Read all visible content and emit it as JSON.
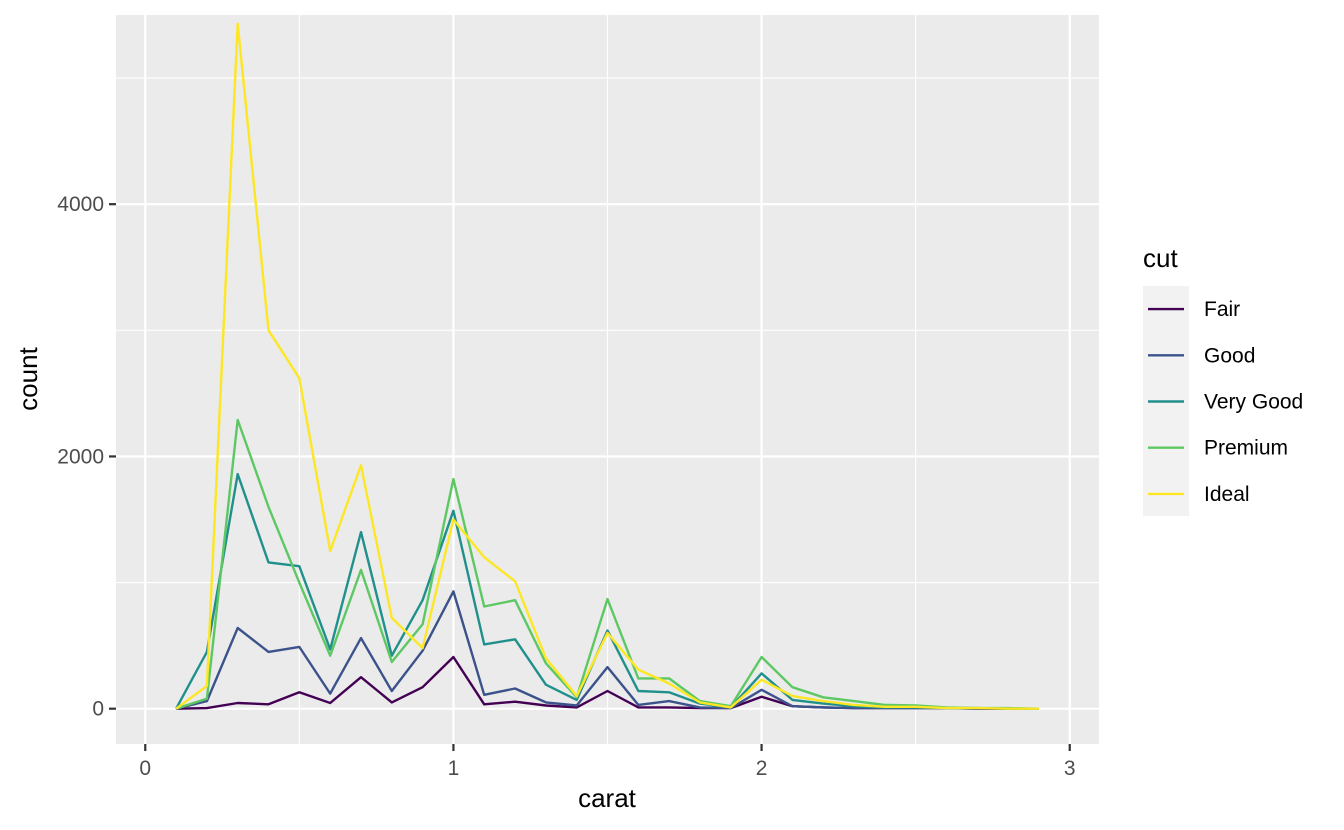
{
  "chart_data": {
    "type": "line",
    "xlabel": "carat",
    "ylabel": "count",
    "xlim": [
      -0.095,
      3.095
    ],
    "ylim": [
      -280,
      5500
    ],
    "x_ticks": [
      0,
      1,
      2,
      3
    ],
    "x_tick_labels": [
      "0",
      "1",
      "2",
      "3"
    ],
    "y_ticks": [
      0,
      2000,
      4000
    ],
    "y_tick_labels": [
      "0",
      "2000",
      "4000"
    ],
    "grid": true,
    "legend_title": "cut",
    "legend_position": "right",
    "x": [
      0.1,
      0.2,
      0.3,
      0.4,
      0.5,
      0.6,
      0.7,
      0.8,
      0.9,
      1.0,
      1.1,
      1.2,
      1.3,
      1.4,
      1.5,
      1.6,
      1.7,
      1.8,
      1.9,
      2.0,
      2.1,
      2.2,
      2.3,
      2.4,
      2.5,
      2.6,
      2.7,
      2.8,
      2.9
    ],
    "series": [
      {
        "name": "Fair",
        "color": "#440154",
        "values": [
          0,
          5,
          45,
          35,
          130,
          45,
          250,
          50,
          170,
          410,
          35,
          55,
          25,
          10,
          140,
          10,
          10,
          5,
          5,
          95,
          20,
          10,
          5,
          5,
          5,
          5,
          0,
          0,
          0
        ]
      },
      {
        "name": "Good",
        "color": "#3B528B",
        "values": [
          0,
          60,
          640,
          450,
          490,
          120,
          560,
          140,
          460,
          930,
          110,
          160,
          50,
          25,
          330,
          30,
          60,
          10,
          5,
          150,
          20,
          10,
          5,
          5,
          5,
          5,
          0,
          0,
          0
        ]
      },
      {
        "name": "Very Good",
        "color": "#21908C",
        "values": [
          0,
          450,
          1860,
          1160,
          1130,
          470,
          1400,
          420,
          860,
          1570,
          510,
          550,
          190,
          70,
          620,
          140,
          130,
          40,
          10,
          280,
          70,
          40,
          20,
          10,
          10,
          5,
          5,
          0,
          0
        ]
      },
      {
        "name": "Premium",
        "color": "#5DC863",
        "values": [
          0,
          80,
          2290,
          1600,
          1000,
          420,
          1100,
          370,
          670,
          1820,
          810,
          860,
          360,
          90,
          870,
          240,
          240,
          60,
          20,
          410,
          170,
          90,
          60,
          30,
          25,
          10,
          5,
          5,
          0
        ]
      },
      {
        "name": "Ideal",
        "color": "#FDE725",
        "values": [
          0,
          180,
          5430,
          3000,
          2620,
          1250,
          1930,
          720,
          480,
          1500,
          1200,
          1010,
          400,
          100,
          600,
          310,
          200,
          50,
          10,
          230,
          100,
          60,
          30,
          15,
          15,
          5,
          5,
          0,
          0
        ]
      }
    ]
  }
}
